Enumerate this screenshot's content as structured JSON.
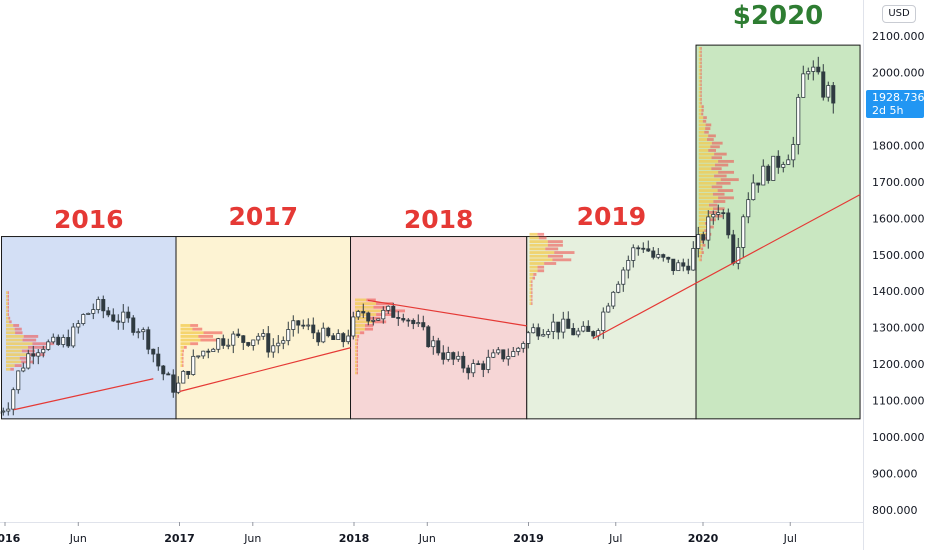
{
  "currency": "USD",
  "price_label": {
    "price": "1928.736",
    "countdown": "2d 5h"
  },
  "chart_data": {
    "type": "candlestick",
    "title": "",
    "ylim": [
      760,
      2160
    ],
    "y_ticks": [
      "800.000",
      "900.000",
      "1000.000",
      "1100.000",
      "1200.000",
      "1300.000",
      "1400.000",
      "1500.000",
      "1600.000",
      "1700.000",
      "1800.000",
      "1900.000",
      "2000.000",
      "2100.000"
    ],
    "x_ticks": [
      {
        "label": "2016",
        "t": 2016.0,
        "bold": true
      },
      {
        "label": "Jun",
        "t": 2016.42,
        "bold": false
      },
      {
        "label": "2017",
        "t": 2017.0,
        "bold": true
      },
      {
        "label": "Jun",
        "t": 2017.42,
        "bold": false
      },
      {
        "label": "2018",
        "t": 2018.0,
        "bold": true
      },
      {
        "label": "Jun",
        "t": 2018.42,
        "bold": false
      },
      {
        "label": "2019",
        "t": 2019.0,
        "bold": true
      },
      {
        "label": "Jul",
        "t": 2019.5,
        "bold": false
      },
      {
        "label": "2020",
        "t": 2020.0,
        "bold": true
      },
      {
        "label": "Jul",
        "t": 2020.5,
        "bold": false
      }
    ],
    "year_boxes": [
      {
        "label": "2016",
        "start": 2015.98,
        "end": 2016.98,
        "low": 1050,
        "high": 1550,
        "fill": "#d3dff5"
      },
      {
        "label": "2017",
        "start": 2016.98,
        "end": 2017.98,
        "low": 1050,
        "high": 1550,
        "fill": "#fdf3d3"
      },
      {
        "label": "2018",
        "start": 2017.98,
        "end": 2018.99,
        "low": 1050,
        "high": 1550,
        "fill": "#f6d6d6"
      },
      {
        "label": "2019",
        "start": 2018.99,
        "end": 2019.96,
        "low": 1050,
        "high": 1550,
        "fill": "#e6f0de"
      },
      {
        "label": "$2020",
        "start": 2019.96,
        "end": 2020.9,
        "low": 1050,
        "high": 2075,
        "fill": "#c9e7c1"
      }
    ],
    "trendlines": [
      {
        "from": [
          2016.05,
          1075
        ],
        "to": [
          2016.85,
          1160
        ]
      },
      {
        "from": [
          2017.0,
          1125
        ],
        "to": [
          2017.98,
          1245
        ]
      },
      {
        "from": [
          2018.08,
          1375
        ],
        "to": [
          2018.99,
          1305
        ]
      },
      {
        "from": [
          2019.37,
          1270
        ],
        "to": [
          2020.9,
          1665
        ]
      }
    ],
    "price_series": {
      "t": [
        2015.95,
        2016.02,
        2016.08,
        2016.15,
        2016.22,
        2016.3,
        2016.38,
        2016.45,
        2016.52,
        2016.6,
        2016.68,
        2016.76,
        2016.82,
        2016.88,
        2016.94,
        2016.98,
        2017.05,
        2017.12,
        2017.2,
        2017.28,
        2017.36,
        2017.45,
        2017.52,
        2017.6,
        2017.68,
        2017.76,
        2017.85,
        2017.93,
        2017.98,
        2018.05,
        2018.12,
        2018.2,
        2018.28,
        2018.36,
        2018.44,
        2018.52,
        2018.6,
        2018.68,
        2018.76,
        2018.84,
        2018.92,
        2018.99,
        2019.05,
        2019.12,
        2019.2,
        2019.28,
        2019.36,
        2019.42,
        2019.48,
        2019.54,
        2019.6,
        2019.66,
        2019.72,
        2019.78,
        2019.84,
        2019.9,
        2019.96,
        2020.02,
        2020.08,
        2020.14,
        2020.18,
        2020.22,
        2020.28,
        2020.34,
        2020.4,
        2020.46,
        2020.52,
        2020.56,
        2020.6,
        2020.64,
        2020.68,
        2020.72,
        2020.76
      ],
      "close": [
        1065,
        1095,
        1180,
        1240,
        1255,
        1250,
        1275,
        1330,
        1360,
        1335,
        1320,
        1305,
        1265,
        1195,
        1150,
        1130,
        1190,
        1230,
        1260,
        1275,
        1265,
        1280,
        1245,
        1270,
        1310,
        1290,
        1270,
        1260,
        1300,
        1345,
        1330,
        1340,
        1345,
        1300,
        1260,
        1225,
        1200,
        1190,
        1205,
        1225,
        1230,
        1280,
        1300,
        1310,
        1300,
        1285,
        1280,
        1330,
        1410,
        1460,
        1510,
        1530,
        1490,
        1480,
        1465,
        1470,
        1520,
        1570,
        1640,
        1590,
        1480,
        1600,
        1700,
        1720,
        1740,
        1770,
        1800,
        1960,
        2030,
        1990,
        1955,
        1945,
        1925
      ]
    },
    "legend": "none",
    "grid": false
  }
}
